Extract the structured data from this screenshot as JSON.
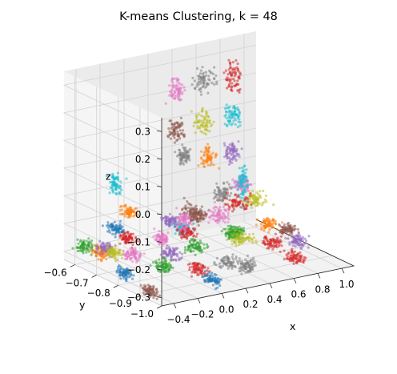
{
  "chart_data": {
    "type": "scatter",
    "projection": "3d",
    "title": "K-means Clustering, k = 48",
    "xlabel": "x",
    "ylabel": "y",
    "zlabel": "z",
    "xlim": [
      -0.5,
      1.1
    ],
    "ylim": [
      -1.0,
      -0.55
    ],
    "zlim": [
      -0.33,
      0.35
    ],
    "xticks": [
      "−0.4",
      "−0.2",
      "0.0",
      "0.2",
      "0.4",
      "0.6",
      "0.8",
      "1.0"
    ],
    "yticks": [
      "−0.6",
      "−0.7",
      "−0.8",
      "−0.9",
      "−1.0"
    ],
    "zticks": [
      "0.3",
      "0.2",
      "0.1",
      "0.0",
      "−0.1",
      "−0.2",
      "−0.3"
    ],
    "grid": true,
    "n_clusters": 48,
    "palette": [
      "#1f77b4",
      "#ff7f0e",
      "#2ca02c",
      "#d62728",
      "#9467bd",
      "#8c564b",
      "#e377c2",
      "#7f7f7f",
      "#bcbd22",
      "#17becf"
    ],
    "clusters": [
      {
        "center": [
          0.85,
          -0.58,
          0.22
        ],
        "spread": [
          0.08,
          0.01,
          0.05
        ],
        "color": "#d62728"
      },
      {
        "center": [
          0.62,
          -0.58,
          0.23
        ],
        "spread": [
          0.08,
          0.01,
          0.04
        ],
        "color": "#7f7f7f"
      },
      {
        "center": [
          0.38,
          -0.58,
          0.21
        ],
        "spread": [
          0.07,
          0.01,
          0.04
        ],
        "color": "#e377c2"
      },
      {
        "center": [
          0.85,
          -0.58,
          0.08
        ],
        "spread": [
          0.07,
          0.01,
          0.04
        ],
        "color": "#17becf"
      },
      {
        "center": [
          0.6,
          -0.58,
          0.08
        ],
        "spread": [
          0.07,
          0.01,
          0.04
        ],
        "color": "#bcbd22"
      },
      {
        "center": [
          0.38,
          -0.58,
          0.07
        ],
        "spread": [
          0.07,
          0.01,
          0.04
        ],
        "color": "#8c564b"
      },
      {
        "center": [
          0.85,
          -0.58,
          -0.05
        ],
        "spread": [
          0.07,
          0.01,
          0.035
        ],
        "color": "#9467bd"
      },
      {
        "center": [
          0.65,
          -0.58,
          -0.05
        ],
        "spread": [
          0.06,
          0.01,
          0.035
        ],
        "color": "#ff7f0e"
      },
      {
        "center": [
          0.45,
          -0.58,
          -0.03
        ],
        "spread": [
          0.05,
          0.01,
          0.03
        ],
        "color": "#7f7f7f"
      },
      {
        "center": [
          0.45,
          -0.85,
          -0.03
        ],
        "spread": [
          0.02,
          0.02,
          0.06
        ],
        "color": "#17becf"
      },
      {
        "center": [
          0.5,
          -0.8,
          -0.12
        ],
        "spread": [
          0.1,
          0.03,
          0.03
        ],
        "color": "#d62728"
      },
      {
        "center": [
          0.3,
          -0.82,
          -0.14
        ],
        "spread": [
          0.07,
          0.03,
          0.03
        ],
        "color": "#e377c2"
      },
      {
        "center": [
          0.55,
          -0.7,
          -0.13
        ],
        "spread": [
          0.06,
          0.02,
          0.03
        ],
        "color": "#7f7f7f"
      },
      {
        "center": [
          0.75,
          -0.68,
          -0.12
        ],
        "spread": [
          0.05,
          0.02,
          0.03
        ],
        "color": "#e377c2"
      },
      {
        "center": [
          0.9,
          -0.66,
          -0.2
        ],
        "spread": [
          0.07,
          0.03,
          0.025
        ],
        "color": "#bcbd22"
      },
      {
        "center": [
          0.2,
          -0.75,
          -0.15
        ],
        "spread": [
          0.05,
          0.03,
          0.03
        ],
        "color": "#8c564b"
      },
      {
        "center": [
          0.35,
          -0.9,
          -0.2
        ],
        "spread": [
          0.08,
          0.03,
          0.02
        ],
        "color": "#bcbd22"
      },
      {
        "center": [
          0.55,
          -0.93,
          -0.22
        ],
        "spread": [
          0.08,
          0.03,
          0.02
        ],
        "color": "#d62728"
      },
      {
        "center": [
          0.5,
          -0.78,
          -0.24
        ],
        "spread": [
          0.07,
          0.02,
          0.02
        ],
        "color": "#2ca02c"
      },
      {
        "center": [
          0.75,
          -0.8,
          -0.22
        ],
        "spread": [
          0.06,
          0.03,
          0.02
        ],
        "color": "#ff7f0e"
      },
      {
        "center": [
          0.85,
          -0.88,
          -0.26
        ],
        "spread": [
          0.06,
          0.03,
          0.02
        ],
        "color": "#9467bd"
      },
      {
        "center": [
          0.95,
          -0.78,
          -0.27
        ],
        "spread": [
          0.05,
          0.03,
          0.02
        ],
        "color": "#8c564b"
      },
      {
        "center": [
          0.7,
          -0.95,
          -0.28
        ],
        "spread": [
          0.06,
          0.03,
          0.02
        ],
        "color": "#d62728"
      },
      {
        "center": [
          0.15,
          -0.95,
          -0.25
        ],
        "spread": [
          0.08,
          0.03,
          0.02
        ],
        "color": "#7f7f7f"
      },
      {
        "center": [
          0.05,
          -0.85,
          -0.22
        ],
        "spread": [
          0.06,
          0.03,
          0.02
        ],
        "color": "#2ca02c"
      },
      {
        "center": [
          0.1,
          -0.78,
          -0.2
        ],
        "spread": [
          0.06,
          0.03,
          0.02
        ],
        "color": "#d62728"
      },
      {
        "center": [
          -0.05,
          -0.75,
          -0.22
        ],
        "spread": [
          0.05,
          0.03,
          0.02
        ],
        "color": "#e377c2"
      },
      {
        "center": [
          -0.15,
          -0.85,
          -0.23
        ],
        "spread": [
          0.06,
          0.03,
          0.02
        ],
        "color": "#9467bd"
      },
      {
        "center": [
          -0.1,
          -0.95,
          -0.25
        ],
        "spread": [
          0.06,
          0.03,
          0.02
        ],
        "color": "#d62728"
      },
      {
        "center": [
          -0.3,
          -0.9,
          -0.24
        ],
        "spread": [
          0.06,
          0.03,
          0.02
        ],
        "color": "#2ca02c"
      },
      {
        "center": [
          -0.35,
          -0.78,
          -0.24
        ],
        "spread": [
          0.05,
          0.03,
          0.02
        ],
        "color": "#e377c2"
      },
      {
        "center": [
          -0.38,
          -0.68,
          -0.25
        ],
        "spread": [
          0.05,
          0.03,
          0.02
        ],
        "color": "#9467bd"
      },
      {
        "center": [
          -0.42,
          -0.6,
          -0.27
        ],
        "spread": [
          0.05,
          0.03,
          0.02
        ],
        "color": "#2ca02c"
      },
      {
        "center": [
          -0.25,
          -0.7,
          -0.22
        ],
        "spread": [
          0.05,
          0.03,
          0.02
        ],
        "color": "#d62728"
      },
      {
        "center": [
          -0.2,
          -0.62,
          -0.22
        ],
        "spread": [
          0.05,
          0.03,
          0.02
        ],
        "color": "#1f77b4"
      },
      {
        "center": [
          -0.45,
          -0.8,
          -0.29
        ],
        "spread": [
          0.04,
          0.03,
          0.02
        ],
        "color": "#1f77b4"
      },
      {
        "center": [
          -0.45,
          -0.92,
          -0.31
        ],
        "spread": [
          0.04,
          0.03,
          0.02
        ],
        "color": "#8c564b"
      },
      {
        "center": [
          -0.4,
          -0.72,
          -0.25
        ],
        "spread": [
          0.04,
          0.03,
          0.02
        ],
        "color": "#bcbd22"
      },
      {
        "center": [
          -0.05,
          -0.6,
          -0.18
        ],
        "spread": [
          0.04,
          0.03,
          0.02
        ],
        "color": "#ff7f0e"
      },
      {
        "center": [
          -0.2,
          -0.62,
          -0.06
        ],
        "spread": [
          0.03,
          0.02,
          0.04
        ],
        "color": "#17becf"
      },
      {
        "center": [
          0.05,
          -0.8,
          -0.15
        ],
        "spread": [
          0.04,
          0.03,
          0.03
        ],
        "color": "#e377c2"
      },
      {
        "center": [
          0.25,
          -0.98,
          -0.26
        ],
        "spread": [
          0.05,
          0.02,
          0.02
        ],
        "color": "#7f7f7f"
      },
      {
        "center": [
          0.15,
          -0.68,
          -0.2
        ],
        "spread": [
          0.05,
          0.03,
          0.02
        ],
        "color": "#9467bd"
      },
      {
        "center": [
          0.35,
          -0.7,
          -0.19
        ],
        "spread": [
          0.05,
          0.02,
          0.02
        ],
        "color": "#8c564b"
      },
      {
        "center": [
          0.65,
          -0.7,
          -0.28
        ],
        "spread": [
          0.05,
          0.03,
          0.02
        ],
        "color": "#2ca02c"
      },
      {
        "center": [
          -0.3,
          -0.6,
          -0.3
        ],
        "spread": [
          0.04,
          0.03,
          0.02
        ],
        "color": "#ff7f0e"
      },
      {
        "center": [
          0.0,
          -0.95,
          -0.3
        ],
        "spread": [
          0.05,
          0.03,
          0.02
        ],
        "color": "#1f77b4"
      },
      {
        "center": [
          0.4,
          -0.6,
          -0.28
        ],
        "spread": [
          0.05,
          0.03,
          0.02
        ],
        "color": "#17becf"
      }
    ]
  }
}
